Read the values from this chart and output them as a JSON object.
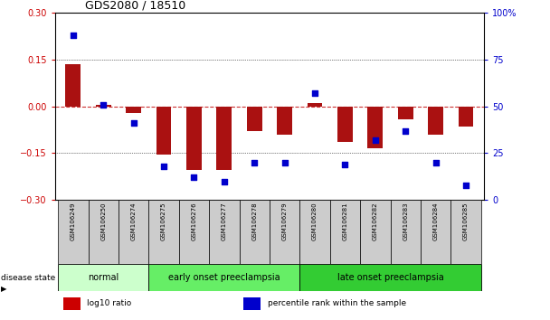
{
  "title": "GDS2080 / 18510",
  "samples": [
    "GSM106249",
    "GSM106250",
    "GSM106274",
    "GSM106275",
    "GSM106276",
    "GSM106277",
    "GSM106278",
    "GSM106279",
    "GSM106280",
    "GSM106281",
    "GSM106282",
    "GSM106283",
    "GSM106284",
    "GSM106285"
  ],
  "log10_ratio": [
    0.135,
    0.005,
    -0.02,
    -0.155,
    -0.205,
    -0.205,
    -0.08,
    -0.09,
    0.01,
    -0.115,
    -0.135,
    -0.04,
    -0.09,
    -0.065
  ],
  "percentile_rank": [
    88,
    51,
    41,
    18,
    12,
    10,
    20,
    20,
    57,
    19,
    32,
    37,
    20,
    8
  ],
  "groups": [
    {
      "label": "normal",
      "start": 0,
      "end": 3,
      "color": "#ccffcc"
    },
    {
      "label": "early onset preeclampsia",
      "start": 3,
      "end": 8,
      "color": "#66ee66"
    },
    {
      "label": "late onset preeclampsia",
      "start": 8,
      "end": 14,
      "color": "#33cc33"
    }
  ],
  "bar_color": "#aa1111",
  "dot_color": "#0000cc",
  "zero_line_color": "#cc3333",
  "ylim_left": [
    -0.3,
    0.3
  ],
  "ylim_right": [
    0,
    100
  ],
  "yticks_left": [
    -0.3,
    -0.15,
    0,
    0.15,
    0.3
  ],
  "yticks_right": [
    0,
    25,
    50,
    75,
    100
  ],
  "yticklabels_right": [
    "0",
    "25",
    "50",
    "75",
    "100%"
  ],
  "left_tick_color": "#cc0000",
  "right_tick_color": "#0000cc",
  "bar_width": 0.5,
  "dot_size": 18,
  "legend_items": [
    {
      "label": "log10 ratio",
      "color": "#cc0000"
    },
    {
      "label": "percentile rank within the sample",
      "color": "#0000cc"
    }
  ],
  "disease_state_label": "disease state",
  "background_color": "#ffffff",
  "sample_box_color": "#cccccc",
  "title_fontsize": 9,
  "tick_fontsize": 7,
  "label_fontsize": 6,
  "group_fontsize": 7
}
